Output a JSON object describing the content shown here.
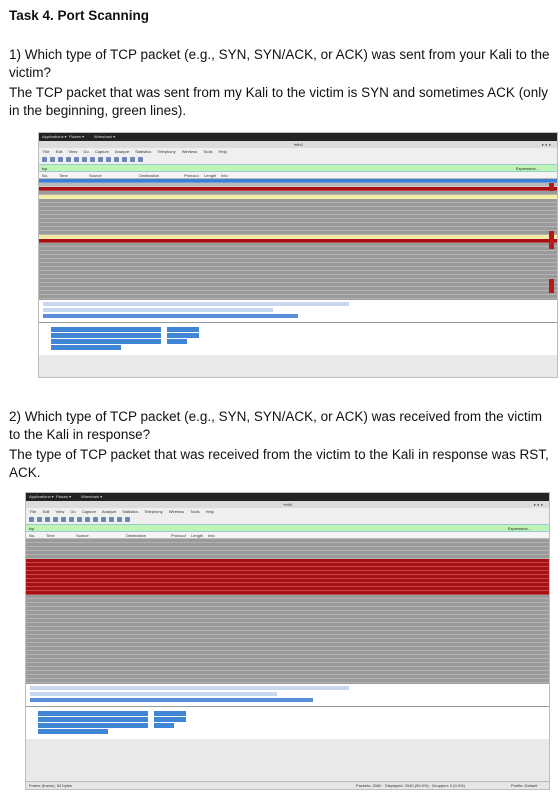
{
  "heading": "Task 4. Port Scanning",
  "q1": {
    "question": "1) Which type of TCP packet (e.g., SYN, SYN/ACK, or ACK) was sent from your Kali to the victim?",
    "answer": "The TCP packet that was sent from my Kali to the victim is SYN and sometimes ACK (only in the beginning, green lines)."
  },
  "q2": {
    "question_line1": "2) Which type of TCP packet (e.g., SYN, SYN/ACK, or ACK) was received from the victim",
    "question_line2": "to the Kali in response?",
    "answer": "The type of TCP packet that was received from the victim to the Kali in response was RST, ACK."
  },
  "wireshark": {
    "applications_menu": "Applications ▾",
    "places_menu": "Places ▾",
    "app_name": "Wireshark ▾",
    "window_title": "*eth0",
    "menu_items": [
      "File",
      "Edit",
      "View",
      "Go",
      "Capture",
      "Analyze",
      "Statistics",
      "Telephony",
      "Wireless",
      "Tools",
      "Help"
    ],
    "filter_value": "tcp",
    "expression_label": "Expression...",
    "columns": [
      "No.",
      "Time",
      "Source",
      "Destination",
      "Protocol",
      "Length",
      "Info"
    ],
    "status_frame": "Frame (frame), 54 bytes",
    "status_packets": "Packets: 2060 · Displayed: 2040 (99.0%) · Dropped: 0 (0.0%)",
    "status_profile": "Profile: Default"
  },
  "colors": {
    "row_gray": "#9a9a9a",
    "row_red": "#a80f12",
    "row_selected": "#3c7fd4",
    "filter_green": "#bff4b8"
  }
}
